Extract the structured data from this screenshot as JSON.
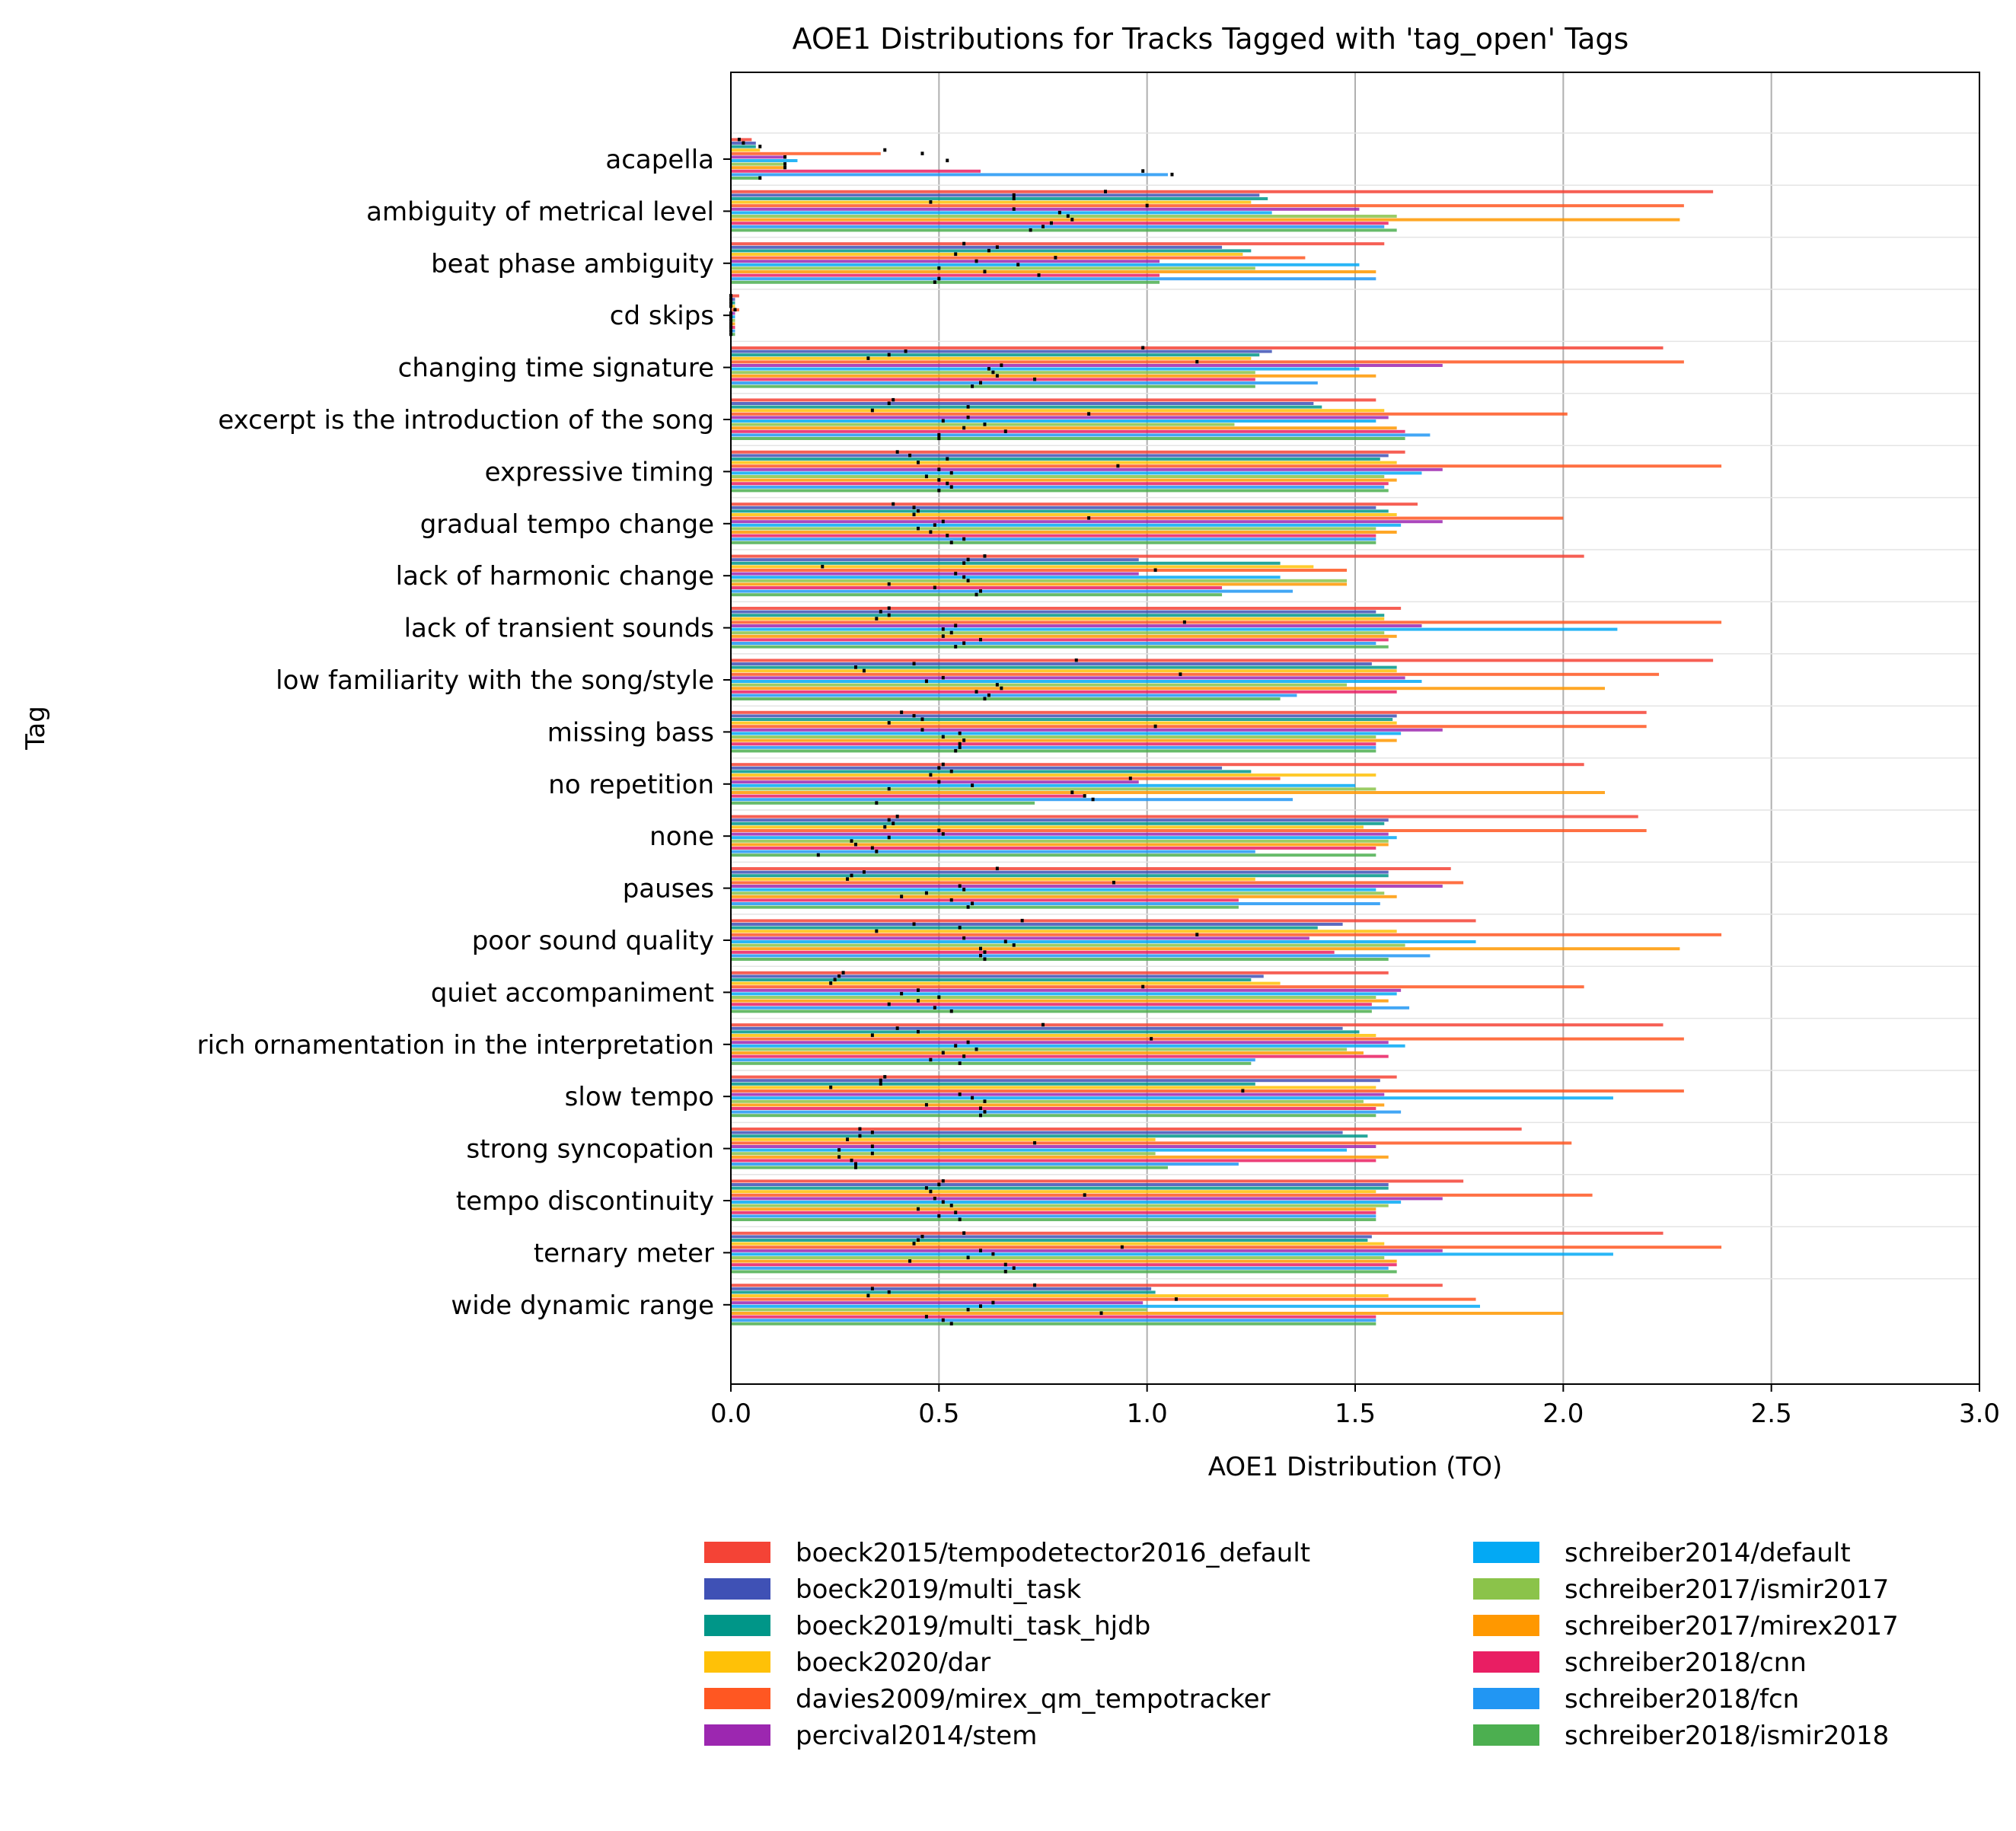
{
  "chart_data": {
    "type": "bar",
    "orientation": "horizontal",
    "title": "AOE1 Distributions for Tracks Tagged with 'tag_open' Tags",
    "xlabel": "AOE1 Distribution (TO)",
    "ylabel": "Tag",
    "xlim": [
      0,
      3.0
    ],
    "xticks": [
      "0.0",
      "0.5",
      "1.0",
      "1.5",
      "2.0",
      "2.5",
      "3.0"
    ],
    "grid": "vertical",
    "legend_position": "bottom",
    "categories": [
      "acapella",
      "ambiguity of metrical level",
      "beat phase ambiguity",
      "cd skips",
      "changing time signature",
      "excerpt is the introduction of the song",
      "expressive timing",
      "gradual tempo change",
      "lack of harmonic change",
      "lack of transient sounds",
      "low familiarity with the song/style",
      "missing bass",
      "no repetition",
      "none",
      "pauses",
      "poor sound quality",
      "quiet accompaniment",
      "rich ornamentation in the interpretation",
      "slow tempo",
      "strong syncopation",
      "tempo discontinuity",
      "ternary meter",
      "wide dynamic range"
    ],
    "series": [
      {
        "name": "boeck2015/tempodetector2016_default",
        "color": "#F44336",
        "max": [
          0.05,
          2.36,
          1.57,
          0.02,
          2.24,
          1.55,
          1.62,
          1.65,
          2.05,
          1.61,
          2.36,
          2.2,
          2.05,
          2.18,
          1.73,
          1.79,
          1.58,
          2.24,
          1.6,
          1.9,
          1.76,
          2.24,
          1.71
        ],
        "median": [
          0.02,
          0.9,
          0.56,
          0.0,
          0.99,
          0.39,
          0.4,
          0.39,
          0.61,
          0.38,
          0.83,
          0.41,
          0.51,
          0.4,
          0.64,
          0.7,
          0.27,
          0.75,
          0.37,
          0.31,
          0.51,
          0.56,
          0.73
        ]
      },
      {
        "name": "boeck2019/multi_task",
        "color": "#3F51B5",
        "max": [
          0.06,
          1.27,
          1.18,
          0.01,
          1.3,
          1.4,
          1.58,
          1.55,
          0.98,
          1.55,
          1.54,
          1.6,
          1.18,
          1.58,
          1.58,
          1.47,
          1.28,
          1.47,
          1.56,
          1.47,
          1.58,
          1.54,
          1.01
        ],
        "median": [
          0.03,
          0.68,
          0.64,
          0.0,
          0.42,
          0.38,
          0.43,
          0.44,
          0.57,
          0.36,
          0.44,
          0.44,
          0.5,
          0.38,
          0.32,
          0.44,
          0.26,
          0.4,
          0.36,
          0.34,
          0.5,
          0.46,
          0.34
        ]
      },
      {
        "name": "boeck2019/multi_task_hjdb",
        "color": "#009688",
        "max": [
          0.06,
          1.29,
          1.25,
          0.01,
          1.27,
          1.42,
          1.56,
          1.58,
          1.32,
          1.57,
          1.6,
          1.59,
          1.25,
          1.57,
          1.58,
          1.41,
          1.25,
          1.51,
          1.26,
          1.53,
          1.58,
          1.53,
          1.02
        ],
        "median": [
          0.07,
          0.68,
          0.62,
          0.0,
          0.38,
          0.57,
          0.52,
          0.45,
          0.56,
          0.38,
          0.3,
          0.46,
          0.53,
          0.39,
          0.29,
          0.55,
          0.25,
          0.45,
          0.36,
          0.31,
          0.47,
          0.45,
          0.38
        ]
      },
      {
        "name": "boeck2020/dar",
        "color": "#FFC107",
        "max": [
          0.07,
          1.25,
          1.23,
          0.01,
          1.25,
          1.57,
          1.6,
          1.6,
          1.4,
          1.57,
          1.6,
          1.6,
          1.55,
          1.52,
          1.26,
          1.6,
          1.32,
          1.55,
          1.55,
          1.02,
          1.55,
          1.57,
          1.58
        ],
        "median": [
          0.37,
          0.48,
          0.54,
          0.0,
          0.33,
          0.34,
          0.45,
          0.44,
          0.22,
          0.35,
          0.32,
          0.38,
          0.48,
          0.37,
          0.28,
          0.35,
          0.24,
          0.34,
          0.24,
          0.28,
          0.48,
          0.44,
          0.33
        ]
      },
      {
        "name": "davies2009/mirex_qm_tempotracker",
        "color": "#FF5722",
        "max": [
          0.36,
          2.29,
          1.38,
          0.02,
          2.29,
          2.01,
          2.38,
          2.0,
          1.48,
          2.38,
          2.23,
          2.2,
          1.32,
          2.2,
          1.76,
          2.38,
          2.05,
          2.29,
          2.29,
          2.02,
          2.07,
          2.38,
          1.79
        ],
        "median": [
          0.46,
          1.0,
          0.78,
          0.01,
          1.12,
          0.86,
          0.93,
          0.86,
          1.02,
          1.09,
          1.08,
          1.02,
          0.96,
          0.5,
          0.92,
          1.12,
          0.99,
          1.01,
          1.23,
          0.73,
          0.85,
          0.94,
          1.07
        ]
      },
      {
        "name": "percival2014/stem",
        "color": "#9C27B0",
        "max": [
          0.13,
          1.51,
          1.03,
          0.01,
          1.71,
          1.58,
          1.71,
          1.71,
          0.98,
          1.66,
          1.62,
          1.71,
          0.98,
          1.58,
          1.71,
          1.39,
          1.61,
          1.58,
          1.57,
          1.55,
          1.71,
          1.71,
          0.99
        ],
        "median": [
          0.13,
          0.68,
          0.59,
          0.0,
          0.65,
          0.57,
          0.5,
          0.51,
          0.54,
          0.54,
          0.51,
          0.46,
          0.5,
          0.51,
          0.55,
          0.56,
          0.45,
          0.57,
          0.55,
          0.34,
          0.49,
          0.6,
          0.63
        ]
      },
      {
        "name": "schreiber2014/default",
        "color": "#03A9F4",
        "max": [
          0.16,
          1.3,
          1.51,
          0.01,
          1.51,
          1.55,
          1.66,
          1.61,
          1.32,
          2.13,
          1.66,
          1.61,
          1.5,
          1.6,
          1.55,
          1.79,
          1.6,
          1.62,
          2.12,
          1.48,
          1.61,
          2.12,
          1.8
        ],
        "median": [
          0.52,
          0.79,
          0.69,
          0.0,
          0.62,
          0.51,
          0.53,
          0.49,
          0.56,
          0.51,
          0.47,
          0.55,
          0.58,
          0.38,
          0.56,
          0.66,
          0.41,
          0.54,
          0.58,
          0.26,
          0.51,
          0.63,
          0.6
        ]
      },
      {
        "name": "schreiber2017/ismir2017",
        "color": "#8BC34A",
        "max": [
          0.13,
          1.6,
          1.26,
          0.01,
          1.26,
          1.21,
          1.57,
          1.55,
          1.48,
          1.57,
          1.48,
          1.55,
          1.55,
          1.58,
          1.57,
          1.62,
          1.55,
          1.48,
          1.52,
          1.02,
          1.58,
          1.57,
          1.0
        ],
        "median": [
          0.13,
          0.81,
          0.5,
          0.0,
          0.63,
          0.61,
          0.47,
          0.45,
          0.57,
          0.53,
          0.64,
          0.51,
          0.38,
          0.29,
          0.47,
          0.68,
          0.5,
          0.59,
          0.61,
          0.34,
          0.53,
          0.57,
          0.57
        ]
      },
      {
        "name": "schreiber2017/mirex2017",
        "color": "#FF9800",
        "max": [
          0.13,
          2.28,
          1.55,
          0.01,
          1.55,
          1.6,
          1.6,
          1.6,
          1.48,
          1.6,
          2.1,
          1.6,
          2.1,
          1.58,
          1.6,
          2.28,
          1.58,
          1.52,
          1.57,
          1.58,
          1.55,
          1.6,
          2.0
        ],
        "median": [
          0.13,
          0.82,
          0.61,
          0.0,
          0.64,
          0.56,
          0.5,
          0.48,
          0.38,
          0.51,
          0.65,
          0.56,
          0.82,
          0.3,
          0.41,
          0.6,
          0.45,
          0.51,
          0.47,
          0.26,
          0.45,
          0.43,
          0.89
        ]
      },
      {
        "name": "schreiber2018/cnn",
        "color": "#E91E63",
        "max": [
          0.6,
          1.58,
          1.03,
          0.01,
          1.26,
          1.62,
          1.58,
          1.55,
          1.18,
          1.58,
          1.6,
          1.55,
          0.85,
          1.55,
          1.22,
          1.45,
          1.54,
          1.58,
          1.55,
          1.55,
          1.55,
          1.6,
          1.55
        ],
        "median": [
          0.99,
          0.77,
          0.74,
          0.0,
          0.73,
          0.66,
          0.52,
          0.52,
          0.49,
          0.6,
          0.59,
          0.55,
          0.85,
          0.34,
          0.53,
          0.61,
          0.38,
          0.56,
          0.6,
          0.29,
          0.54,
          0.66,
          0.47
        ]
      },
      {
        "name": "schreiber2018/fcn",
        "color": "#2196F3",
        "max": [
          1.05,
          1.57,
          1.55,
          0.01,
          1.41,
          1.68,
          1.57,
          1.55,
          1.35,
          1.55,
          1.36,
          1.55,
          1.35,
          1.26,
          1.56,
          1.68,
          1.63,
          1.26,
          1.61,
          1.22,
          1.55,
          1.58,
          1.55
        ],
        "median": [
          1.06,
          0.75,
          0.5,
          0.0,
          0.6,
          0.5,
          0.53,
          0.56,
          0.6,
          0.56,
          0.62,
          0.55,
          0.87,
          0.35,
          0.58,
          0.6,
          0.49,
          0.48,
          0.61,
          0.3,
          0.5,
          0.68,
          0.51
        ]
      },
      {
        "name": "schreiber2018/ismir2018",
        "color": "#4CAF50",
        "max": [
          0.07,
          1.6,
          1.03,
          0.01,
          1.26,
          1.62,
          1.58,
          1.55,
          1.18,
          1.58,
          1.32,
          1.55,
          0.73,
          1.55,
          1.22,
          1.58,
          1.54,
          1.25,
          1.55,
          1.05,
          1.55,
          1.6,
          1.55
        ],
        "median": [
          0.07,
          0.72,
          0.49,
          0.0,
          0.58,
          0.5,
          0.5,
          0.53,
          0.59,
          0.54,
          0.61,
          0.54,
          0.35,
          0.21,
          0.57,
          0.61,
          0.53,
          0.55,
          0.6,
          0.3,
          0.55,
          0.66,
          0.53
        ]
      }
    ]
  }
}
